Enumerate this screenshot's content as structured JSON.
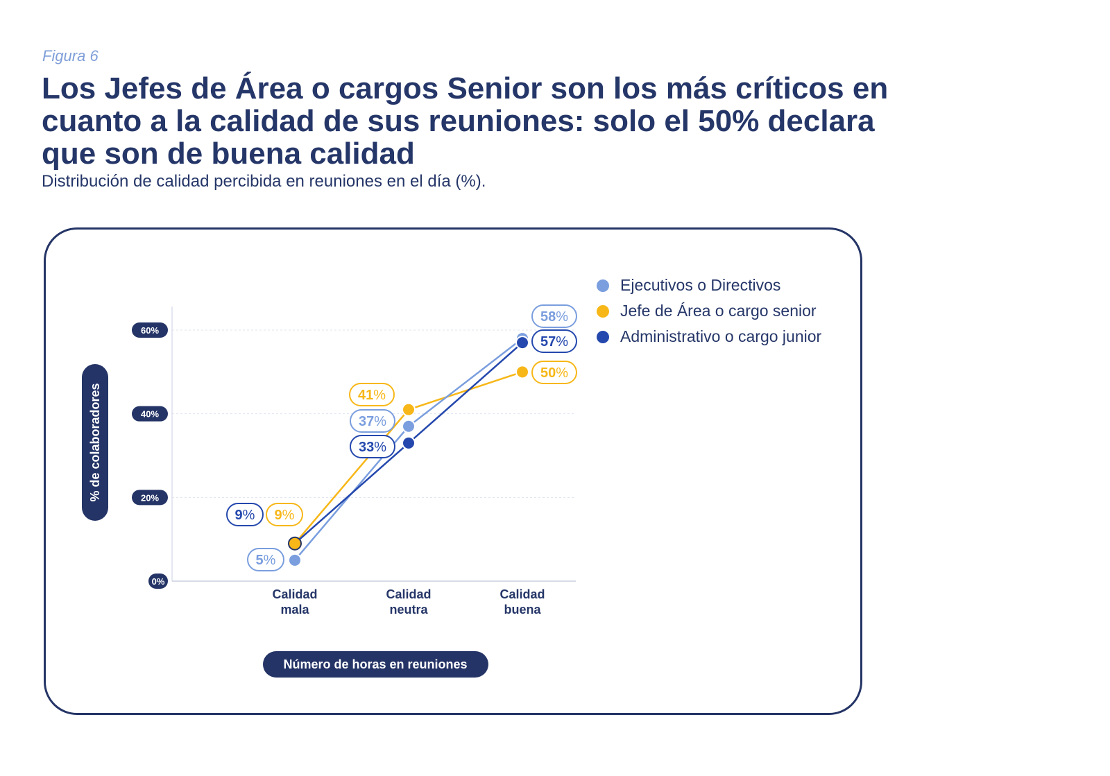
{
  "figure_label": "Figura 6",
  "chart_data": {
    "type": "line",
    "title": "Los Jefes de Área o cargos Senior son los más críticos en cuanto a la calidad de sus reuniones: solo el 50% declara que son de buena calidad",
    "subtitle": "Distribución de calidad percibida en reuniones en el día (%).",
    "categories": [
      "Calidad mala",
      "Calidad neutra",
      "Calidad buena"
    ],
    "category_lines": [
      [
        "Calidad",
        "mala"
      ],
      [
        "Calidad",
        "neutra"
      ],
      [
        "Calidad",
        "buena"
      ]
    ],
    "series": [
      {
        "name": "Ejecutivos o Directivos",
        "values": [
          5,
          37,
          58
        ],
        "color": "#7a9ede"
      },
      {
        "name": "Jefe de Área o cargo senior",
        "values": [
          9,
          41,
          50
        ],
        "color": "#f7b718"
      },
      {
        "name": "Administrativo o cargo junior",
        "values": [
          9,
          33,
          57
        ],
        "color": "#2448ad"
      }
    ],
    "ylabel": "% de colaboradores",
    "xlabel": "Número de horas en reuniones",
    "y_ticks": [
      "0%",
      "20%",
      "40%",
      "60%"
    ],
    "ylim": [
      0,
      65
    ],
    "value_suffix": "%",
    "grid": true,
    "legend_position": "top-right"
  }
}
